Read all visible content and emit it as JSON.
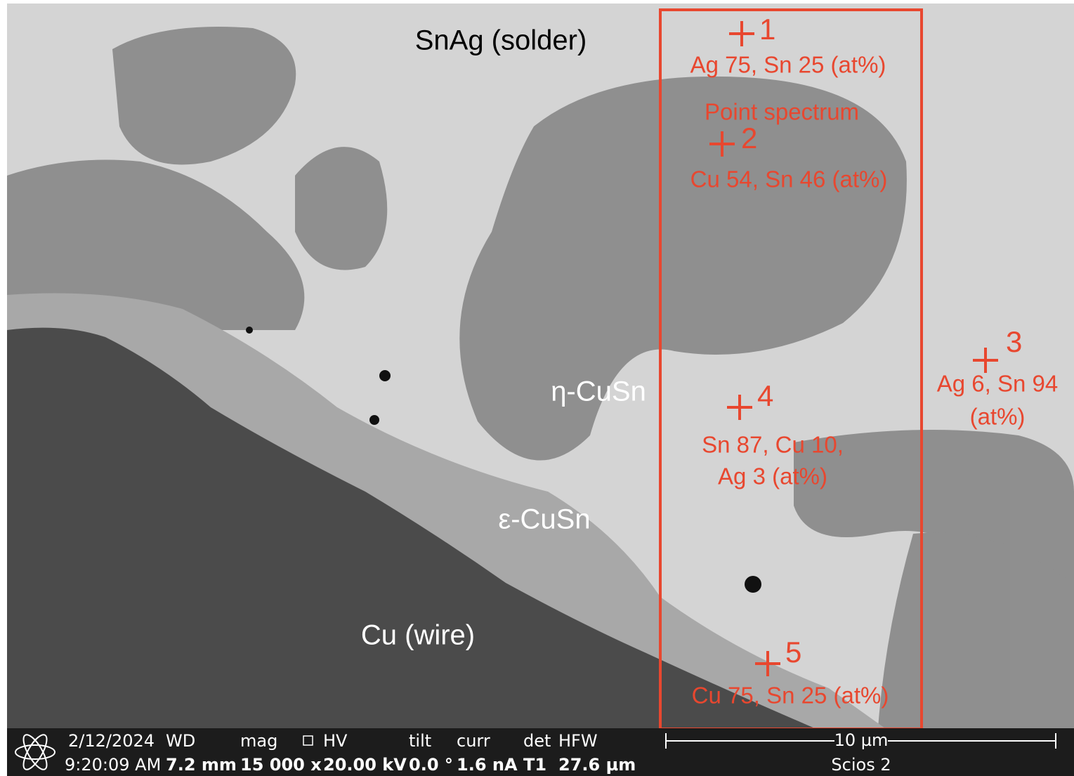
{
  "labels": {
    "solder": "SnAg (solder)",
    "eta": "η-CuSn",
    "epsilon": "ε-CuSn",
    "wire": "Cu (wire)"
  },
  "box_title": "Point spectrum",
  "points": [
    {
      "id": "1",
      "composition": [
        "Ag 75, Sn 25 (at%)"
      ]
    },
    {
      "id": "2",
      "composition": [
        "Cu 54, Sn 46 (at%)"
      ]
    },
    {
      "id": "3",
      "composition": [
        "Ag 6, Sn 94",
        "(at%)"
      ]
    },
    {
      "id": "4",
      "composition": [
        "Sn 87, Cu 10,",
        "Ag 3 (at%)"
      ]
    },
    {
      "id": "5",
      "composition": [
        "Cu 75, Sn 25 (at%)"
      ]
    }
  ],
  "info_bar": {
    "date": "2/12/2024",
    "time": "9:20:09 AM",
    "fields": [
      {
        "label": "WD",
        "value": "7.2 mm"
      },
      {
        "label": "mag",
        "value": "15 000 x"
      },
      {
        "label": "HV",
        "value": "20.00 kV"
      },
      {
        "label": "tilt",
        "value": "0.0 °"
      },
      {
        "label": "curr",
        "value": "1.6 nA"
      },
      {
        "label": "det",
        "value": "T1"
      },
      {
        "label": "HFW",
        "value": "27.6 µm"
      }
    ],
    "scale_bar": "10 µm",
    "instrument": "Scios 2"
  }
}
